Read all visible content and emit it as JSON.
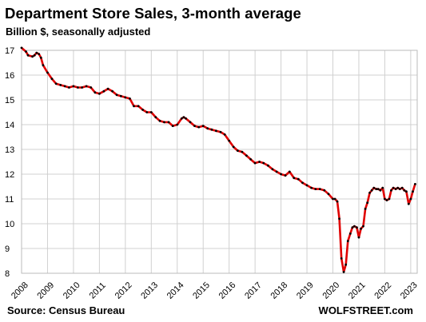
{
  "chart_data": {
    "type": "line",
    "title": "Department Store Sales, 3-month average",
    "subtitle": "Billion $, seasonally adjusted",
    "xlabel": "",
    "ylabel": "",
    "ylim": [
      8,
      17
    ],
    "xlim": [
      2008.0,
      2023.25
    ],
    "yticks": [
      "8",
      "9",
      "10",
      "11",
      "12",
      "13",
      "14",
      "15",
      "16",
      "17"
    ],
    "xticks": [
      "2008",
      "2009",
      "2010",
      "2011",
      "2012",
      "2013",
      "2014",
      "2015",
      "2016",
      "2017",
      "2018",
      "2019",
      "2020",
      "2021",
      "2022",
      "2023"
    ],
    "grid": true,
    "line_color": "#e00000",
    "marker_color": "#000000",
    "series": [
      {
        "x": [
          2008.0,
          2008.17,
          2008.25,
          2008.42,
          2008.5,
          2008.58,
          2008.67,
          2008.75,
          2008.83,
          2009.0,
          2009.17,
          2009.33,
          2009.5,
          2009.67,
          2009.83,
          2010.0,
          2010.17,
          2010.33,
          2010.5,
          2010.67,
          2010.83,
          2011.0,
          2011.17,
          2011.33,
          2011.5,
          2011.67,
          2011.83,
          2012.0,
          2012.17,
          2012.33,
          2012.5,
          2012.67,
          2012.83,
          2013.0,
          2013.17,
          2013.33,
          2013.5,
          2013.67,
          2013.83,
          2014.0,
          2014.17,
          2014.25,
          2014.33,
          2014.5,
          2014.67,
          2014.83,
          2015.0,
          2015.17,
          2015.33,
          2015.5,
          2015.67,
          2015.83,
          2016.0,
          2016.17,
          2016.33,
          2016.5,
          2016.67,
          2016.83,
          2017.0,
          2017.17,
          2017.33,
          2017.5,
          2017.67,
          2017.83,
          2018.0,
          2018.17,
          2018.33,
          2018.5,
          2018.67,
          2018.83,
          2019.0,
          2019.17,
          2019.33,
          2019.5,
          2019.67,
          2019.83,
          2020.0,
          2020.08,
          2020.17,
          2020.25,
          2020.33,
          2020.42,
          2020.5,
          2020.58,
          2020.67,
          2020.75,
          2020.83,
          2020.92,
          2021.0,
          2021.08,
          2021.17,
          2021.25,
          2021.33,
          2021.42,
          2021.5,
          2021.58,
          2021.67,
          2021.75,
          2021.83,
          2021.92,
          2022.0,
          2022.08,
          2022.17,
          2022.25,
          2022.33,
          2022.42,
          2022.5,
          2022.58,
          2022.67,
          2022.75,
          2022.83,
          2022.92,
          2023.0,
          2023.08,
          2023.17
        ],
        "y": [
          17.1,
          16.95,
          16.8,
          16.75,
          16.8,
          16.9,
          16.85,
          16.7,
          16.4,
          16.1,
          15.85,
          15.65,
          15.6,
          15.55,
          15.5,
          15.55,
          15.5,
          15.5,
          15.55,
          15.5,
          15.3,
          15.25,
          15.35,
          15.45,
          15.35,
          15.2,
          15.15,
          15.1,
          15.05,
          14.75,
          14.75,
          14.6,
          14.5,
          14.5,
          14.3,
          14.15,
          14.1,
          14.1,
          13.95,
          14.0,
          14.25,
          14.3,
          14.25,
          14.1,
          13.95,
          13.9,
          13.95,
          13.85,
          13.8,
          13.75,
          13.7,
          13.6,
          13.35,
          13.1,
          12.95,
          12.9,
          12.75,
          12.6,
          12.45,
          12.5,
          12.45,
          12.35,
          12.2,
          12.1,
          12.0,
          11.95,
          12.1,
          11.85,
          11.8,
          11.65,
          11.55,
          11.45,
          11.4,
          11.4,
          11.35,
          11.2,
          11.0,
          11.0,
          10.9,
          10.2,
          8.6,
          8.05,
          8.35,
          9.3,
          9.6,
          9.85,
          9.9,
          9.85,
          9.45,
          9.8,
          9.9,
          10.6,
          10.85,
          11.25,
          11.35,
          11.45,
          11.4,
          11.4,
          11.35,
          11.45,
          11.0,
          10.95,
          11.0,
          11.35,
          11.45,
          11.4,
          11.45,
          11.4,
          11.45,
          11.35,
          11.3,
          10.8,
          11.0,
          11.3,
          11.6
        ]
      }
    ]
  },
  "footer": {
    "source": "Source: Census Bureau",
    "brand": "WOLFSTREET.com"
  }
}
